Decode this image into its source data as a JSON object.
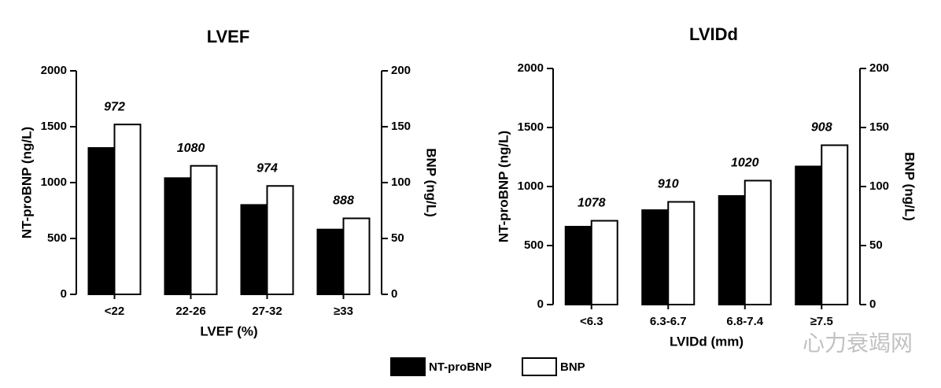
{
  "chart_data": [
    {
      "type": "bar",
      "title": "LVEF",
      "x_label": "LVEF (%)",
      "y_label": "NT-proBNP (ng/L)",
      "y2_label": "BNP (ng/L)",
      "categories": [
        "<22",
        "22-26",
        "27-32",
        "≥33"
      ],
      "ylim": [
        0,
        2000
      ],
      "yticks": [
        0,
        500,
        1000,
        1500,
        2000
      ],
      "y2lim": [
        0,
        200
      ],
      "y2ticks": [
        0,
        50,
        100,
        150,
        200
      ],
      "series": [
        {
          "color": "#000000",
          "values": [
            1310,
            1040,
            800,
            580
          ]
        },
        {
          "color": "#ffffff",
          "axis": "y2",
          "values": [
            152,
            115,
            97,
            68
          ]
        }
      ],
      "annotations": [
        "972",
        "1080",
        "974",
        "888"
      ]
    },
    {
      "type": "bar",
      "title": "LVIDd",
      "x_label": "LVIDd (mm)",
      "y_label": "NT-proBNP (ng/L)",
      "y2_label": "BNP (ng/L)",
      "categories": [
        "<6.3",
        "6.3-6.7",
        "6.8-7.4",
        "≥7.5"
      ],
      "ylim": [
        0,
        2000
      ],
      "yticks": [
        0,
        500,
        1000,
        1500,
        2000
      ],
      "y2lim": [
        0,
        200
      ],
      "y2ticks": [
        0,
        50,
        100,
        150,
        200
      ],
      "series": [
        {
          "color": "#000000",
          "values": [
            660,
            800,
            920,
            1170
          ]
        },
        {
          "color": "#ffffff",
          "axis": "y2",
          "values": [
            71,
            87,
            105,
            135
          ]
        }
      ],
      "annotations": [
        "1078",
        "910",
        "1020",
        "908"
      ]
    }
  ],
  "legend": [
    {
      "label": "NT-proBNP",
      "color": "#000000"
    },
    {
      "label": "BNP",
      "color": "#ffffff"
    }
  ],
  "watermark": "心力衰竭网"
}
